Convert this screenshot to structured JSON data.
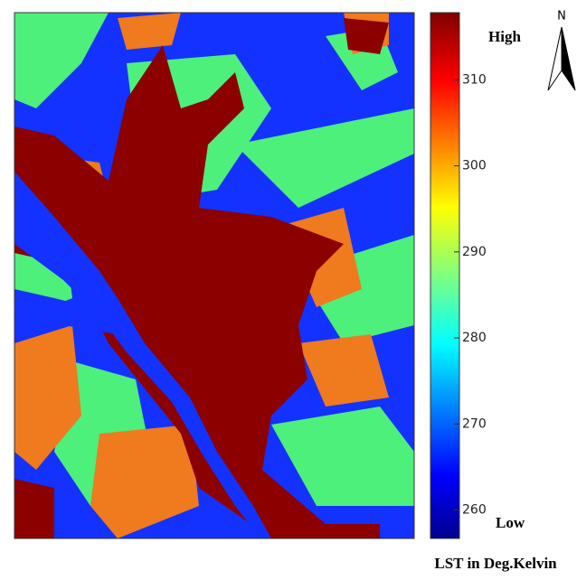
{
  "map": {
    "north_label": "N",
    "legend": {
      "title": "LST in Deg.Kelvin",
      "high_label": "High",
      "low_label": "Low",
      "range": [
        256.7,
        317.8
      ],
      "ticks": [
        260,
        270,
        280,
        290,
        300,
        310
      ]
    }
  }
}
